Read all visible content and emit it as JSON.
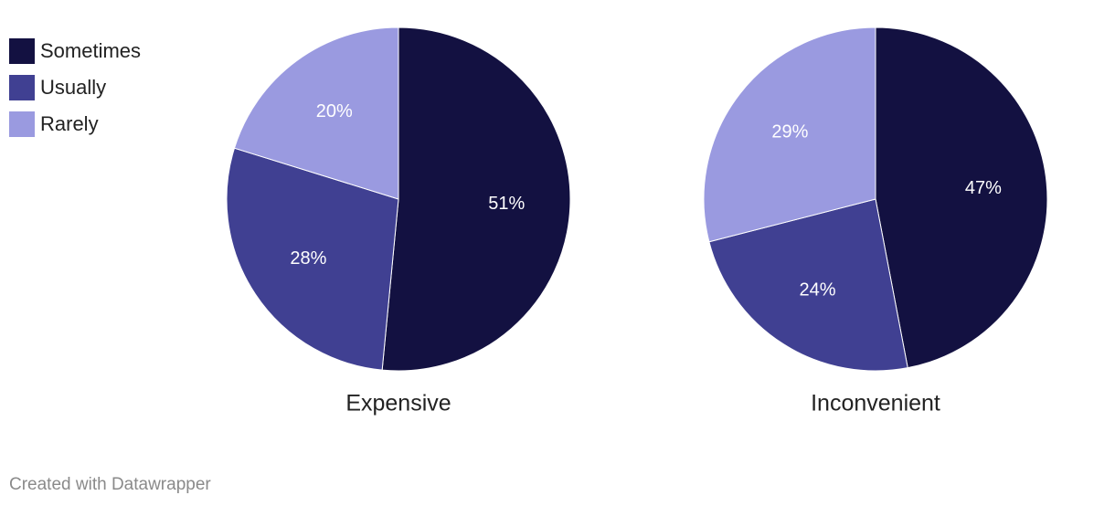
{
  "chart_data": [
    {
      "type": "pie",
      "title": "Expensive",
      "categories": [
        "Sometimes",
        "Usually",
        "Rarely"
      ],
      "values": [
        51,
        28,
        20
      ],
      "value_labels": [
        "51%",
        "28%",
        "20%"
      ],
      "colors": [
        "#131141",
        "#404092",
        "#9a9ae0"
      ]
    },
    {
      "type": "pie",
      "title": "Inconvenient",
      "categories": [
        "Sometimes",
        "Usually",
        "Rarely"
      ],
      "values": [
        47,
        24,
        29
      ],
      "value_labels": [
        "47%",
        "24%",
        "29%"
      ],
      "colors": [
        "#131141",
        "#404092",
        "#9a9ae0"
      ]
    }
  ],
  "footer": "Created with Datawrapper"
}
